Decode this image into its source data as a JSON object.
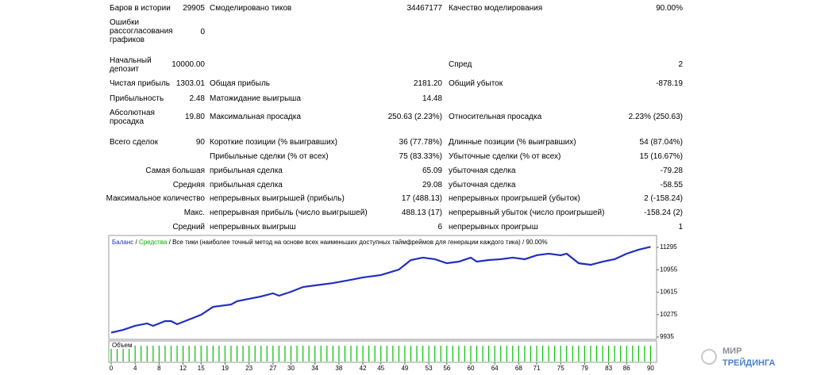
{
  "report": {
    "rows": [
      {
        "label": "Баров в истории",
        "value": "29905",
        "label2": "Смоделировано тиков",
        "value2": "34467177",
        "label3": "Качество моделирования",
        "value3": "90.00%"
      },
      {
        "label": "Ошибки рассогласования графиков",
        "value": "0"
      },
      {
        "label": "Начальный депозит",
        "value": "10000.00",
        "label3": "Спред",
        "value3": "2"
      },
      {
        "label": "Чистая прибыль",
        "value": "1303.01",
        "label2": "Общая прибыль",
        "value2": "2181.20",
        "label3": "Общий убыток",
        "value3": "-878.19"
      },
      {
        "label": "Прибыльность",
        "value": "2.48",
        "label2": "Матожидание выигрыша",
        "value2": "14.48"
      },
      {
        "label": "Абсолютная просадка",
        "value": "19.80",
        "label2": "Максимальная просадка",
        "value2": "250.63 (2.23%)",
        "label3": "Относительная просадка",
        "value3": "2.23% (250.63)"
      },
      {
        "label": "Всего сделок",
        "value": "90",
        "label2": "Короткие позиции (% выигравших)",
        "value2": "36 (77.78%)",
        "label3": "Длинные позиции (% выигравших)",
        "value3": "54 (87.04%)"
      },
      {
        "label2": "Прибыльные сделки (% от всех)",
        "value2": "75 (83.33%)",
        "label3": "Убыточные сделки (% от всех)",
        "value3": "15 (16.67%)"
      },
      {
        "group": "Самая большая",
        "label2": "прибыльная сделка",
        "value2": "65.09",
        "label3": "убыточная сделка",
        "value3": "-79.28"
      },
      {
        "group": "Средняя",
        "label2": "прибыльная сделка",
        "value2": "29.08",
        "label3": "убыточная сделка",
        "value3": "-58.55"
      },
      {
        "group": "Максимальное количество",
        "label2": "непрерывных выигрышей (прибыль)",
        "value2": "17 (488.13)",
        "label3": "непрерывных проигрышей (убыток)",
        "value3": "2 (-158.24)"
      },
      {
        "group": "Макс.",
        "label2": "непрерывная прибыль (число выигрышей)",
        "value2": "488.13 (17)",
        "label3": "непрерывный убыток (число проигрышей)",
        "value3": "-158.24 (2)"
      },
      {
        "group": "Средний",
        "label2": "непрерывных выигрыш",
        "value2": "6",
        "label3": "непрерывных проигрыш",
        "value3": "1"
      }
    ]
  },
  "chart_data": {
    "type": "line",
    "x": [
      0,
      2,
      4,
      6,
      7,
      9,
      10,
      11,
      13,
      15,
      17,
      20,
      21,
      23,
      25,
      27,
      28,
      30,
      32,
      34,
      37,
      40,
      42,
      45,
      48,
      50,
      52,
      54,
      56,
      58,
      60,
      61,
      63,
      65,
      67,
      69,
      71,
      73,
      75,
      76,
      78,
      80,
      82,
      84,
      86,
      88,
      90
    ],
    "series": [
      {
        "name": "Баланс",
        "color": "#1f2fbf",
        "values": [
          10000,
          10043,
          10104,
          10140,
          10104,
          10176,
          10176,
          10128,
          10200,
          10272,
          10392,
          10428,
          10477,
          10513,
          10549,
          10597,
          10561,
          10621,
          10693,
          10717,
          10753,
          10802,
          10838,
          10874,
          10958,
          11102,
          11139,
          11115,
          11054,
          11078,
          11139,
          11078,
          11102,
          11115,
          11139,
          11115,
          11175,
          11199,
          11175,
          11199,
          11054,
          11030,
          11078,
          11115,
          11199,
          11259,
          11303
        ]
      }
    ],
    "equity_label": "Средства",
    "equity_color": "#00b000",
    "legend_separator": "/",
    "info": "Все тики (наиболее точный метод на основе всех наименьших доступных таймфреймов для генерации каждого тика)",
    "quality": "90.00%",
    "volume_label": "Объем",
    "volume_color": "#00c000",
    "xlim": [
      -0.4,
      91
    ],
    "ylim": [
      9899,
      11355
    ],
    "xticks": [
      0,
      4,
      8,
      12,
      15,
      19,
      23,
      27,
      30,
      34,
      38,
      42,
      45,
      49,
      53,
      56,
      60,
      64,
      68,
      71,
      75,
      79,
      83,
      86,
      90
    ],
    "yticks": [
      9935,
      10275,
      10615,
      10955,
      11295
    ],
    "grid": false
  },
  "brand": {
    "line1": "МИР",
    "line2": "ТРЕЙДИНГА"
  }
}
